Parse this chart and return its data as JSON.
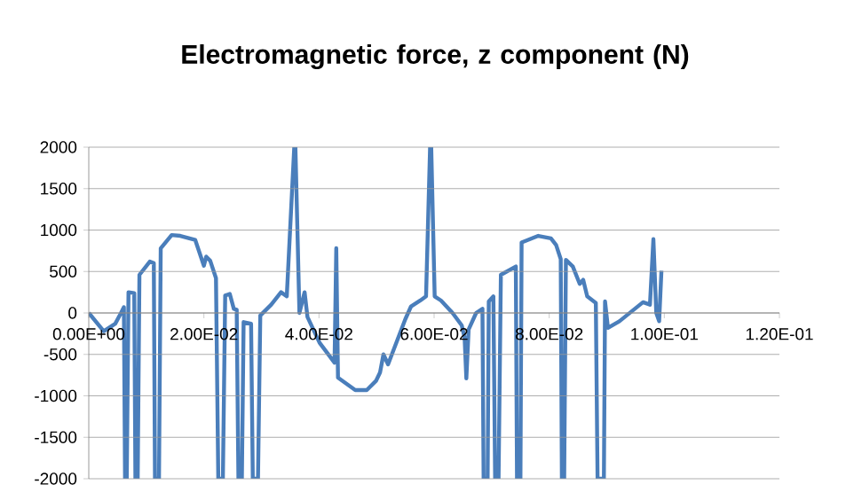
{
  "chart_data": {
    "type": "line",
    "title": "Electromagnetic force, z component (N)",
    "x": [
      0,
      0.0026,
      0.0046,
      0.0056,
      0.0061,
      0.0063,
      0.0066,
      0.0069,
      0.0079,
      0.0081,
      0.0085,
      0.0088,
      0.0106,
      0.0113,
      0.0115,
      0.0122,
      0.0125,
      0.0144,
      0.0159,
      0.0185,
      0.02,
      0.0204,
      0.0211,
      0.0221,
      0.0225,
      0.0233,
      0.0237,
      0.0245,
      0.0252,
      0.0257,
      0.026,
      0.0266,
      0.0269,
      0.0282,
      0.0285,
      0.0294,
      0.0298,
      0.0317,
      0.0334,
      0.0344,
      0.0357,
      0.0359,
      0.0366,
      0.0375,
      0.038,
      0.0401,
      0.0427,
      0.043,
      0.0433,
      0.0463,
      0.0483,
      0.0499,
      0.0506,
      0.0512,
      0.052,
      0.055,
      0.056,
      0.0576,
      0.0586,
      0.0593,
      0.0595,
      0.0601,
      0.0612,
      0.0632,
      0.0648,
      0.0653,
      0.0656,
      0.066,
      0.0673,
      0.0684,
      0.0686,
      0.0693,
      0.0695,
      0.0703,
      0.0706,
      0.0712,
      0.0716,
      0.0742,
      0.0744,
      0.075,
      0.0752,
      0.0781,
      0.0803,
      0.0812,
      0.082,
      0.0822,
      0.0826,
      0.0829,
      0.0841,
      0.0853,
      0.0859,
      0.0866,
      0.0881,
      0.0884,
      0.0895,
      0.0897,
      0.0902,
      0.0922,
      0.0963,
      0.0975,
      0.0981,
      0.0986,
      0.0991,
      0.0995
    ],
    "values": [
      0,
      -220,
      -130,
      0,
      70,
      -2000,
      -2000,
      250,
      240,
      -2000,
      -2000,
      460,
      620,
      600,
      -2000,
      -2000,
      780,
      940,
      930,
      880,
      570,
      680,
      630,
      420,
      -2000,
      -2000,
      210,
      230,
      50,
      40,
      -2000,
      -2000,
      -110,
      -130,
      -2000,
      -2000,
      -30,
      100,
      250,
      200,
      2000,
      2000,
      0,
      250,
      -50,
      -360,
      -600,
      780,
      -780,
      -930,
      -930,
      -820,
      -720,
      -500,
      -620,
      -75,
      80,
      150,
      200,
      2000,
      2000,
      200,
      150,
      0,
      -150,
      -300,
      -790,
      -200,
      0,
      50,
      -2000,
      -2000,
      140,
      200,
      -2000,
      -2000,
      460,
      560,
      -2000,
      -2000,
      850,
      930,
      900,
      820,
      650,
      -2000,
      -2000,
      640,
      560,
      350,
      400,
      200,
      120,
      -2000,
      -2000,
      140,
      -180,
      -100,
      130,
      100,
      890,
      0,
      -100,
      510
    ],
    "color": "#4a7ebb",
    "xlim": [
      0,
      0.12
    ],
    "ylim": [
      -2000,
      2000
    ],
    "xticks": [
      {
        "value": 0,
        "label": "0.00E+00"
      },
      {
        "value": 0.02,
        "label": "2.00E-02"
      },
      {
        "value": 0.04,
        "label": "4.00E-02"
      },
      {
        "value": 0.06,
        "label": "6.00E-02"
      },
      {
        "value": 0.08,
        "label": "8.00E-02"
      },
      {
        "value": 0.1,
        "label": "1.00E-01"
      },
      {
        "value": 0.12,
        "label": "1.20E-01"
      }
    ],
    "yticks": [
      -2000,
      -1500,
      -1000,
      -500,
      0,
      500,
      1000,
      1500,
      2000
    ],
    "grid": "y"
  }
}
